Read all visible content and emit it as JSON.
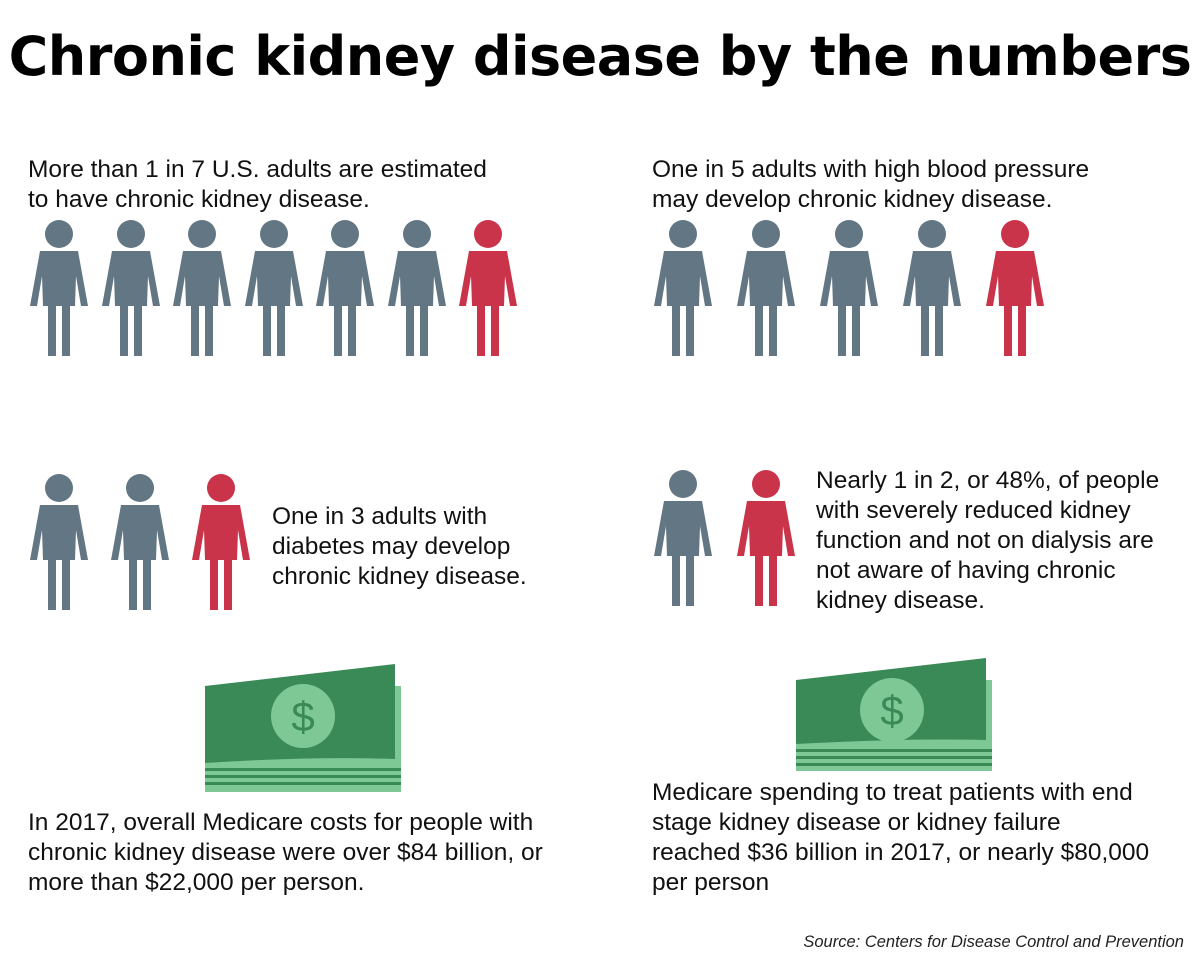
{
  "title": "Chronic kidney disease by the numbers",
  "colors": {
    "person_gray": "#627683",
    "person_red": "#c9344a",
    "bill_dark": "#3a8a58",
    "bill_light": "#7ec896"
  },
  "icons": {
    "person": "person-icon",
    "money": "money-bill-icon"
  },
  "stats": {
    "ckd_adults": {
      "text_line1": "More than 1 in 7 U.S. adults are estimated",
      "text_line2": "to have chronic kidney disease.",
      "total": 7,
      "highlighted": 1
    },
    "blood_pressure": {
      "text_line1": "One in 5 adults with high blood pressure",
      "text_line2": "may develop chronic kidney disease.",
      "total": 5,
      "highlighted": 1
    },
    "diabetes": {
      "text_line1": "One in 3 adults with",
      "text_line2": "diabetes may develop",
      "text_line3": "chronic kidney disease.",
      "total": 3,
      "highlighted": 1
    },
    "awareness": {
      "text_line1": "Nearly 1 in 2, or 48%, of people",
      "text_line2": "with severely reduced kidney",
      "text_line3": "function and not on dialysis are",
      "text_line4": "not aware of having chronic",
      "text_line5": "kidney disease.",
      "total": 2,
      "highlighted": 1
    },
    "medicare_overall": {
      "symbol": "$",
      "text_line1": "In 2017, overall Medicare costs for people with",
      "text_line2": "chronic kidney disease were over $84 billion, or",
      "text_line3": "more than $22,000 per person."
    },
    "medicare_esrd": {
      "symbol": "$",
      "text_line1": "Medicare spending to treat patients with end",
      "text_line2": "stage kidney disease or kidney failure",
      "text_line3": "reached $36 billion in 2017, or nearly $80,000",
      "text_line4": "per person"
    }
  },
  "source": "Source: Centers for Disease Control and Prevention"
}
